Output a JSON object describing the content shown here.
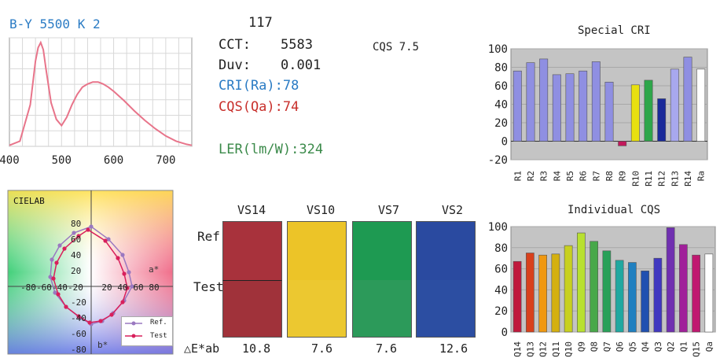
{
  "header": {
    "lamp_name": "B-Y 5500 K 2",
    "lamp_number": "117",
    "cct_label": "CCT:",
    "cct_value": "5583",
    "duv_label": "Duv:",
    "duv_value": "0.001",
    "cri": "CRI(Ra):78",
    "cqs": "CQS(Qa):74",
    "ler": "LER(lm/W):324",
    "cqs_short": "CQS 7.5"
  },
  "colors": {
    "blue_text": "#2a7bc4",
    "red_text": "#c8302c",
    "green_text": "#3b8a4a",
    "spectrum_line": "#e8748a",
    "plot_bg": "#c0c0c0"
  },
  "chart_data": [
    {
      "type": "line",
      "name": "spectrum",
      "xlim": [
        400,
        750
      ],
      "xticks": [
        "400",
        "500",
        "600",
        "700"
      ],
      "x": [
        400,
        420,
        440,
        450,
        455,
        460,
        465,
        470,
        480,
        490,
        500,
        510,
        520,
        530,
        540,
        550,
        560,
        570,
        580,
        590,
        600,
        620,
        640,
        660,
        680,
        700,
        720,
        740,
        750
      ],
      "y": [
        0.01,
        0.05,
        0.4,
        0.82,
        0.95,
        1.0,
        0.93,
        0.75,
        0.42,
        0.26,
        0.2,
        0.28,
        0.4,
        0.5,
        0.57,
        0.6,
        0.62,
        0.62,
        0.6,
        0.57,
        0.53,
        0.44,
        0.34,
        0.25,
        0.17,
        0.1,
        0.05,
        0.02,
        0.01
      ],
      "grid": true
    },
    {
      "type": "bar",
      "title": "Special CRI",
      "categories": [
        "R1",
        "R2",
        "R3",
        "R4",
        "R5",
        "R6",
        "R7",
        "R8",
        "R9",
        "R10",
        "R11",
        "R12",
        "R13",
        "R14",
        "Ra"
      ],
      "values": [
        76,
        85,
        89,
        72,
        73,
        76,
        86,
        64,
        -5,
        61,
        66,
        46,
        78,
        91,
        78
      ],
      "colors": [
        "#8f8fe2",
        "#8f8fe2",
        "#8f8fe2",
        "#8f8fe2",
        "#8f8fe2",
        "#8f8fe2",
        "#8f8fe2",
        "#8f8fe2",
        "#c2185b",
        "#e8e010",
        "#2ea64a",
        "#1a2a9a",
        "#a8a8ee",
        "#8f8fe2",
        "#ffffff"
      ],
      "ylim": [
        -20,
        100
      ],
      "yticks": [
        "-20",
        "0",
        "20",
        "40",
        "60",
        "80",
        "100"
      ],
      "grid": true
    },
    {
      "type": "bar",
      "title": "Individual CQS",
      "categories": [
        "Q14",
        "Q13",
        "Q12",
        "Q11",
        "Q10",
        "Q9",
        "Q8",
        "Q7",
        "Q6",
        "Q5",
        "Q4",
        "Q3",
        "Q2",
        "Q1",
        "Q15",
        "Qa"
      ],
      "values": [
        67,
        75,
        73,
        74,
        82,
        94,
        86,
        77,
        68,
        66,
        58,
        70,
        99,
        83,
        73,
        74
      ],
      "colors": [
        "#c0183c",
        "#d8401c",
        "#f09810",
        "#d4b010",
        "#c8d020",
        "#b8e030",
        "#48a84a",
        "#28a058",
        "#20a8a0",
        "#2080c0",
        "#2050b0",
        "#4038c0",
        "#7030b0",
        "#a0209a",
        "#c01870",
        "#ffffff"
      ],
      "ylim": [
        0,
        100
      ],
      "yticks": [
        "0",
        "20",
        "40",
        "60",
        "80",
        "100"
      ],
      "grid": true
    },
    {
      "type": "scatter",
      "title": "CIELAB",
      "xlim": [
        -80,
        80
      ],
      "ylim": [
        -80,
        80
      ],
      "xticks": [
        "-80",
        "-60",
        "-40",
        "-20",
        "0",
        "20",
        "40",
        "60",
        "80"
      ],
      "yticks": [
        "80",
        "60",
        "40",
        "20",
        "0",
        "-20",
        "-40",
        "-60",
        "-80"
      ],
      "a_label": "a*",
      "b_label": "b*",
      "series": [
        {
          "name": "Ref.",
          "color": "#9a78c0",
          "x": [
            0,
            22,
            40,
            48,
            52,
            42,
            28,
            14,
            0,
            -14,
            -32,
            -46,
            -52,
            -50,
            -40,
            -22
          ],
          "y": [
            76,
            60,
            40,
            18,
            0,
            -18,
            -34,
            -44,
            -48,
            -40,
            -26,
            -8,
            12,
            34,
            52,
            68
          ]
        },
        {
          "name": "Test",
          "color": "#d8205c",
          "x": [
            -4,
            18,
            34,
            42,
            46,
            40,
            26,
            12,
            -2,
            -16,
            -32,
            -42,
            -48,
            -44,
            -34,
            -16
          ],
          "y": [
            72,
            58,
            36,
            16,
            -2,
            -20,
            -36,
            -44,
            -46,
            -38,
            -26,
            -10,
            10,
            30,
            48,
            64
          ]
        }
      ],
      "legend": "bottom-right"
    },
    {
      "type": "table",
      "columns": [
        "VS14",
        "VS10",
        "VS7",
        "VS2"
      ],
      "rows": [
        "Ref",
        "Test"
      ],
      "ref_colors": [
        "#a8323c",
        "#ecc428",
        "#1e9a52",
        "#2a4aa0"
      ],
      "test_colors": [
        "#a0323a",
        "#ecc830",
        "#2c9a5a",
        "#2c4ea2"
      ],
      "delta_label": "△E*ab",
      "delta_values": [
        "10.8",
        "7.6",
        "7.6",
        "12.6"
      ]
    }
  ]
}
